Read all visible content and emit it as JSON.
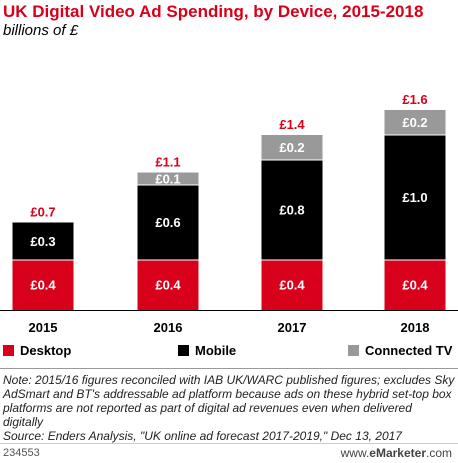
{
  "title": "UK Digital Video Ad Spending, by Device, 2015-2018",
  "subtitle": "billions of £",
  "colors": {
    "desktop": "#d8001a",
    "mobile": "#000000",
    "connected_tv": "#999999",
    "total_label": "#d8001a"
  },
  "chart_data": {
    "type": "bar",
    "stacked": true,
    "categories": [
      "2015",
      "2016",
      "2017",
      "2018"
    ],
    "series": [
      {
        "name": "Desktop",
        "values": [
          0.4,
          0.4,
          0.4,
          0.4
        ],
        "labels": [
          "£0.4",
          "£0.4",
          "£0.4",
          "£0.4"
        ]
      },
      {
        "name": "Mobile",
        "values": [
          0.3,
          0.6,
          0.8,
          1.0
        ],
        "labels": [
          "£0.3",
          "£0.6",
          "£0.8",
          "£1.0"
        ]
      },
      {
        "name": "Connected TV",
        "values": [
          0,
          0.1,
          0.2,
          0.2
        ],
        "labels": [
          "",
          "£0.1",
          "£0.2",
          "£0.2"
        ]
      }
    ],
    "totals": [
      0.7,
      1.1,
      1.4,
      1.6
    ],
    "total_labels": [
      "£0.7",
      "£1.1",
      "£1.4",
      "£1.6"
    ],
    "legend_position": "bottom"
  },
  "legend": [
    "Desktop",
    "Mobile",
    "Connected TV"
  ],
  "note": "Note: 2015/16 figures reconciled with IAB UK/WARC published figures; excludes Sky AdSmart and BT's addressable ad platform because ads on these hybrid set-top box platforms are not reported as part of digital ad revenues even when delivered digitally",
  "source": "Source: Enders Analysis, \"UK online ad forecast 2017-2019,\" Dec 13, 2017",
  "footer": {
    "id": "234553",
    "brand_prefix": "www.",
    "brand_name": "eMarketer",
    "brand_suffix": ".com"
  }
}
